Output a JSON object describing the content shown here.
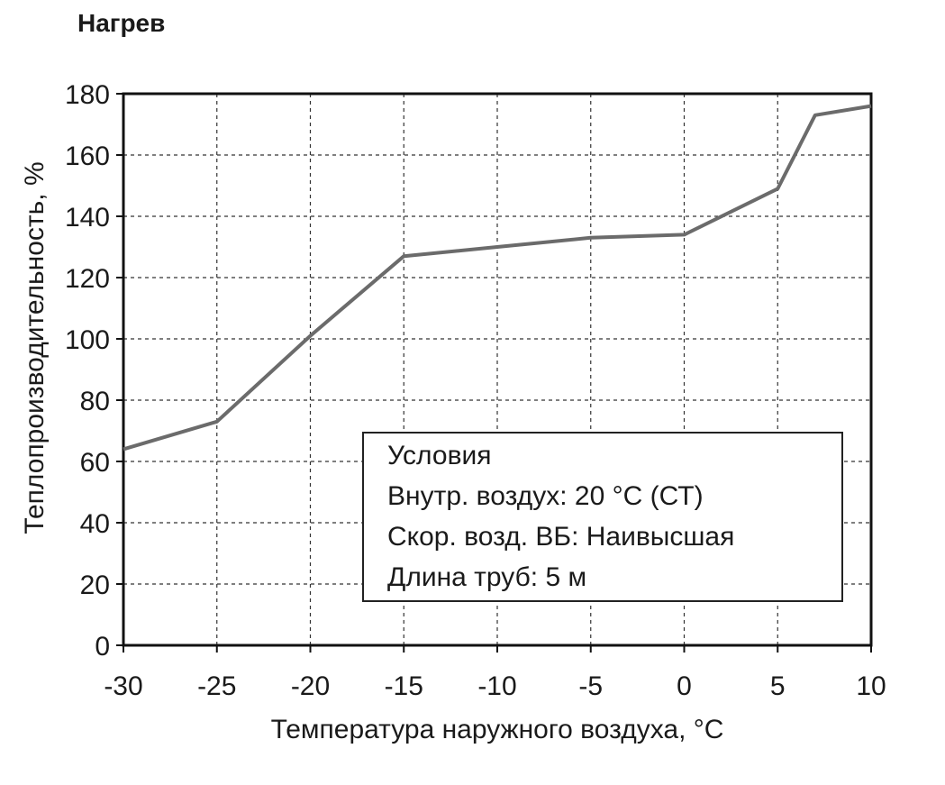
{
  "title": "Нагрев",
  "chart_data": {
    "type": "line",
    "xlabel": "Температура наружного воздуха, °C",
    "ylabel": "Теплопроизводительность, %",
    "xlim": [
      -30,
      10
    ],
    "ylim": [
      0,
      180
    ],
    "x_ticks": [
      -30,
      -25,
      -20,
      -15,
      -10,
      -5,
      0,
      5,
      10
    ],
    "y_ticks": [
      0,
      20,
      40,
      60,
      80,
      100,
      120,
      140,
      160,
      180
    ],
    "x_tick_labels": [
      "-30",
      "-25",
      "-20",
      "-15",
      "-10",
      "-5",
      "0",
      "5",
      "10"
    ],
    "y_tick_labels": [
      "0",
      "20",
      "40",
      "60",
      "80",
      "100",
      "120",
      "140",
      "160",
      "180"
    ],
    "grid": true,
    "series": [
      {
        "x": [
          -30,
          -25,
          -20,
          -15,
          -10,
          -5,
          0,
          5,
          7,
          10
        ],
        "y": [
          64,
          73,
          101,
          127,
          130,
          133,
          134,
          149,
          173,
          176
        ],
        "color": "#6b6b6b"
      }
    ],
    "annotation": {
      "heading": "Условия",
      "lines": [
        "Внутр. воздух: 20 °C (СТ)",
        "Скор. возд. ВБ: Наивысшая",
        "Длина труб: 5 м"
      ]
    }
  }
}
